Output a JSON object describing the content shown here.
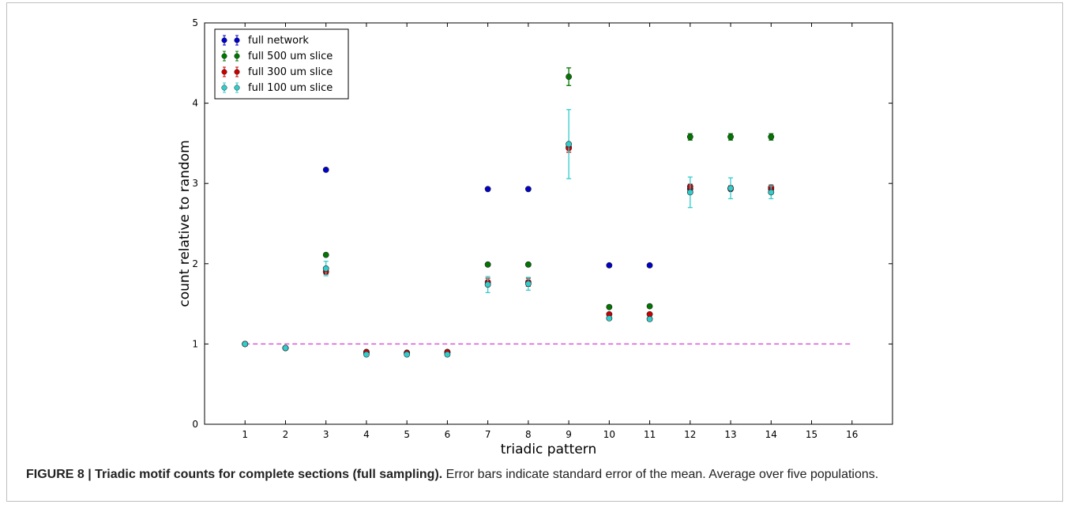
{
  "chart_data": {
    "type": "scatter",
    "xlabel": "triadic pattern",
    "ylabel": "count relative to random",
    "xlim": [
      0,
      17
    ],
    "ylim": [
      0,
      5
    ],
    "x_ticks": [
      1,
      2,
      3,
      4,
      5,
      6,
      7,
      8,
      9,
      10,
      11,
      12,
      13,
      14,
      15,
      16
    ],
    "y_ticks": [
      0,
      1,
      2,
      3,
      4,
      5
    ],
    "grid": false,
    "legend_position": "top-left",
    "reference_line": {
      "y": 1,
      "x_range": [
        1,
        16
      ],
      "style": "dashed",
      "color": "#d63fd6"
    },
    "series": [
      {
        "name": "full network",
        "color": "#0000cc",
        "x": [
          1,
          2,
          3,
          4,
          5,
          6,
          7,
          8,
          9,
          10,
          11,
          12,
          13,
          14
        ],
        "y": [
          1.0,
          0.95,
          3.17,
          0.89,
          0.89,
          0.89,
          2.93,
          2.93,
          3.45,
          1.98,
          1.98,
          2.93,
          2.93,
          2.93
        ],
        "err": [
          0,
          0,
          0,
          0,
          0,
          0,
          0,
          0,
          0,
          0,
          0,
          0,
          0,
          0
        ]
      },
      {
        "name": "full 500 um slice",
        "color": "#007700",
        "x": [
          1,
          2,
          3,
          4,
          5,
          6,
          7,
          8,
          9,
          10,
          11,
          12,
          13,
          14
        ],
        "y": [
          1.0,
          0.95,
          2.11,
          0.9,
          0.89,
          0.9,
          1.99,
          1.99,
          4.33,
          1.46,
          1.47,
          3.58,
          3.58,
          3.58
        ],
        "err": [
          0,
          0,
          0,
          0,
          0,
          0,
          0,
          0,
          0.11,
          0,
          0,
          0.04,
          0.04,
          0.04
        ]
      },
      {
        "name": "full 300 um slice",
        "color": "#cc0000",
        "x": [
          1,
          2,
          3,
          4,
          5,
          6,
          7,
          8,
          9,
          10,
          11,
          12,
          13,
          14
        ],
        "y": [
          1.0,
          0.95,
          1.9,
          0.9,
          0.89,
          0.9,
          1.77,
          1.77,
          3.44,
          1.37,
          1.37,
          2.96,
          2.94,
          2.95
        ],
        "err": [
          0,
          0,
          0.03,
          0,
          0,
          0,
          0.05,
          0.05,
          0.05,
          0,
          0,
          0.03,
          0.03,
          0.03
        ]
      },
      {
        "name": "full 100 um slice",
        "color": "#33cccc",
        "x": [
          1,
          2,
          3,
          4,
          5,
          6,
          7,
          8,
          9,
          10,
          11,
          12,
          13,
          14
        ],
        "y": [
          1.0,
          0.95,
          1.94,
          0.87,
          0.87,
          0.87,
          1.74,
          1.75,
          3.49,
          1.32,
          1.31,
          2.89,
          2.94,
          2.89
        ],
        "err": [
          0,
          0,
          0.09,
          0,
          0,
          0,
          0.1,
          0.08,
          0.43,
          0,
          0,
          0.19,
          0.13,
          0.08
        ]
      }
    ]
  },
  "caption": {
    "bold": "FIGURE 8 | Triadic motif counts for complete sections (full sampling).",
    "text": " Error bars indicate standard error of the mean. Average over five populations."
  }
}
